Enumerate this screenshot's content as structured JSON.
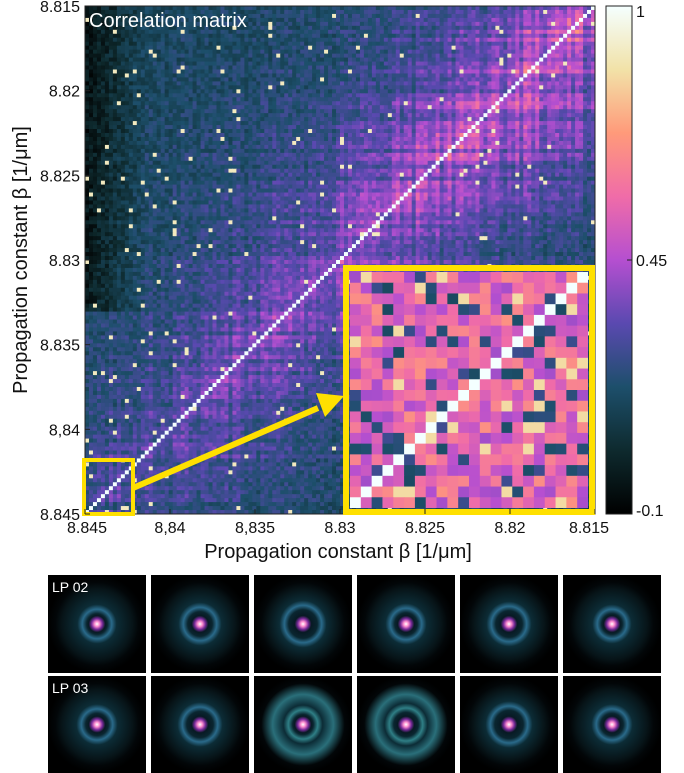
{
  "chart_data": {
    "type": "heatmap",
    "title": "Correlation matrix",
    "xlabel": "Propagation constant β [1/μm]",
    "ylabel": "Propagation constant β [1/μm]",
    "xlim": [
      8.845,
      8.815
    ],
    "ylim": [
      8.845,
      8.815
    ],
    "x_ticks": [
      "8.845",
      "8,84",
      "8,835",
      "8.83",
      "8.825",
      "8.82",
      "8.815"
    ],
    "y_ticks": [
      "8.815",
      "8.82",
      "8.825",
      "8.83",
      "8.835",
      "8,84",
      "8.845"
    ],
    "tick_values": [
      8.845,
      8.84,
      8.835,
      8.83,
      8.825,
      8.82,
      8.815
    ],
    "colorbar": {
      "min": -0.1,
      "max": 1,
      "ticks": [
        {
          "value": 1,
          "label": "1"
        },
        {
          "value": 0.45,
          "label": "0.45"
        },
        {
          "value": -0.1,
          "label": "-0.1"
        }
      ],
      "stops": [
        "#000000",
        "#0e2a2e",
        "#1d4f6b",
        "#5a49b0",
        "#b54fd0",
        "#f06ca8",
        "#ff9a7a",
        "#f2e2a8",
        "#f4ffff"
      ]
    },
    "diagonal_value": 1,
    "inset": {
      "region_x": [
        8.845,
        8.8425
      ],
      "region_y": [
        8.845,
        8.8425
      ],
      "highlight_color": "#ffe000"
    },
    "mode_profiles": [
      {
        "label": "LP 02",
        "count": 6
      },
      {
        "label": "LP 03",
        "count": 6
      }
    ]
  }
}
